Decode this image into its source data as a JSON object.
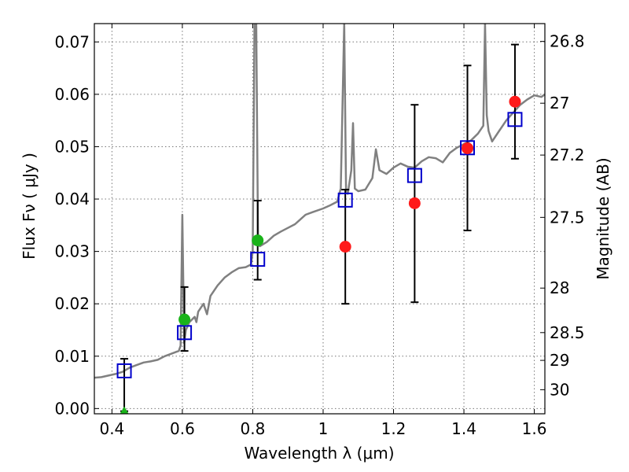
{
  "chart_data": {
    "type": "scatter",
    "xlabel": "Wavelength  λ (μm)",
    "ylabel": "Flux  Fν  ( μJy )",
    "ylabel_right": "Magnitude (AB)",
    "xlim": [
      0.35,
      1.63
    ],
    "ylim": [
      -0.001,
      0.0735
    ],
    "grid": true,
    "x_ticks": [
      0.4,
      0.6,
      0.8,
      1.0,
      1.2,
      1.4,
      1.6
    ],
    "x_tick_labels": [
      "0.4",
      "0.6",
      "0.8",
      "1",
      "1.2",
      "1.4",
      "1.6"
    ],
    "y_ticks": [
      0.0,
      0.01,
      0.02,
      0.03,
      0.04,
      0.05,
      0.06,
      0.07
    ],
    "y_tick_labels": [
      "0.00",
      "0.01",
      "0.02",
      "0.03",
      "0.04",
      "0.05",
      "0.06",
      "0.07"
    ],
    "right_ticks": [
      {
        "flux": 0.0701,
        "label": "26.8"
      },
      {
        "flux": 0.0583,
        "label": "27"
      },
      {
        "flux": 0.0484,
        "label": "27.2"
      },
      {
        "flux": 0.0365,
        "label": "27.5"
      },
      {
        "flux": 0.023,
        "label": "28"
      },
      {
        "flux": 0.0145,
        "label": "28.5"
      },
      {
        "flux": 0.0092,
        "label": "29"
      },
      {
        "flux": 0.0036,
        "label": "30"
      }
    ],
    "colors": {
      "spectrum": "#808080",
      "model_squares": "#0000cc",
      "detections": "#ff1a1a",
      "detections_alt": "#1ab31a",
      "errorbars": "#000000",
      "grid": "#777777"
    },
    "spectrum": [
      [
        0.35,
        0.0059
      ],
      [
        0.37,
        0.006
      ],
      [
        0.39,
        0.0063
      ],
      [
        0.41,
        0.0066
      ],
      [
        0.43,
        0.007
      ],
      [
        0.45,
        0.0078
      ],
      [
        0.47,
        0.0083
      ],
      [
        0.49,
        0.0088
      ],
      [
        0.51,
        0.009
      ],
      [
        0.53,
        0.0093
      ],
      [
        0.55,
        0.01
      ],
      [
        0.57,
        0.0105
      ],
      [
        0.59,
        0.011
      ],
      [
        0.595,
        0.012
      ],
      [
        0.6,
        0.037
      ],
      [
        0.605,
        0.0125
      ],
      [
        0.61,
        0.015
      ],
      [
        0.62,
        0.0165
      ],
      [
        0.635,
        0.0175
      ],
      [
        0.64,
        0.0165
      ],
      [
        0.645,
        0.0185
      ],
      [
        0.66,
        0.02
      ],
      [
        0.67,
        0.018
      ],
      [
        0.68,
        0.0215
      ],
      [
        0.7,
        0.0235
      ],
      [
        0.72,
        0.025
      ],
      [
        0.74,
        0.026
      ],
      [
        0.76,
        0.0268
      ],
      [
        0.78,
        0.027
      ],
      [
        0.795,
        0.0275
      ],
      [
        0.8,
        0.03
      ],
      [
        0.805,
        0.0735
      ],
      [
        0.81,
        0.0735
      ],
      [
        0.815,
        0.032
      ],
      [
        0.82,
        0.031
      ],
      [
        0.84,
        0.0318
      ],
      [
        0.86,
        0.033
      ],
      [
        0.88,
        0.0338
      ],
      [
        0.9,
        0.0345
      ],
      [
        0.92,
        0.0352
      ],
      [
        0.95,
        0.037
      ],
      [
        0.97,
        0.0375
      ],
      [
        1.0,
        0.0382
      ],
      [
        1.02,
        0.0388
      ],
      [
        1.04,
        0.0395
      ],
      [
        1.05,
        0.042
      ],
      [
        1.06,
        0.0735
      ],
      [
        1.065,
        0.042
      ],
      [
        1.07,
        0.041
      ],
      [
        1.08,
        0.0455
      ],
      [
        1.085,
        0.0545
      ],
      [
        1.09,
        0.042
      ],
      [
        1.1,
        0.0415
      ],
      [
        1.12,
        0.0418
      ],
      [
        1.14,
        0.044
      ],
      [
        1.15,
        0.0495
      ],
      [
        1.16,
        0.0455
      ],
      [
        1.18,
        0.0448
      ],
      [
        1.2,
        0.046
      ],
      [
        1.22,
        0.0468
      ],
      [
        1.24,
        0.0462
      ],
      [
        1.26,
        0.046
      ],
      [
        1.28,
        0.0472
      ],
      [
        1.3,
        0.048
      ],
      [
        1.32,
        0.0478
      ],
      [
        1.34,
        0.047
      ],
      [
        1.36,
        0.0488
      ],
      [
        1.38,
        0.0498
      ],
      [
        1.4,
        0.0505
      ],
      [
        1.42,
        0.0512
      ],
      [
        1.44,
        0.0525
      ],
      [
        1.455,
        0.054
      ],
      [
        1.46,
        0.0735
      ],
      [
        1.465,
        0.056
      ],
      [
        1.47,
        0.053
      ],
      [
        1.48,
        0.051
      ],
      [
        1.5,
        0.053
      ],
      [
        1.52,
        0.055
      ],
      [
        1.54,
        0.0565
      ],
      [
        1.56,
        0.058
      ],
      [
        1.58,
        0.059
      ],
      [
        1.6,
        0.0598
      ],
      [
        1.62,
        0.0595
      ],
      [
        1.63,
        0.06
      ]
    ],
    "model_squares": [
      {
        "x": 0.435,
        "y": 0.0072
      },
      {
        "x": 0.606,
        "y": 0.0145
      },
      {
        "x": 0.814,
        "y": 0.0285
      },
      {
        "x": 1.063,
        "y": 0.0398
      },
      {
        "x": 1.26,
        "y": 0.0445
      },
      {
        "x": 1.41,
        "y": 0.0498
      },
      {
        "x": 1.545,
        "y": 0.0552
      }
    ],
    "measurements": [
      {
        "x": 0.435,
        "y": -0.0005,
        "err_low": -0.0005,
        "err_high": 0.0095,
        "color": "green",
        "marker": "triangle"
      },
      {
        "x": 0.606,
        "y": 0.017,
        "err_low": 0.011,
        "err_high": 0.0232,
        "color": "green",
        "marker": "circle"
      },
      {
        "x": 0.814,
        "y": 0.0321,
        "err_low": 0.0246,
        "err_high": 0.0397,
        "color": "green",
        "marker": "circle"
      },
      {
        "x": 1.063,
        "y": 0.0309,
        "err_low": 0.02,
        "err_high": 0.0418,
        "color": "red",
        "marker": "circle"
      },
      {
        "x": 1.26,
        "y": 0.0392,
        "err_low": 0.0203,
        "err_high": 0.058,
        "color": "red",
        "marker": "circle"
      },
      {
        "x": 1.41,
        "y": 0.0497,
        "err_low": 0.034,
        "err_high": 0.0655,
        "color": "red",
        "marker": "circle"
      },
      {
        "x": 1.545,
        "y": 0.0586,
        "err_low": 0.0477,
        "err_high": 0.0695,
        "color": "red",
        "marker": "circle"
      }
    ]
  }
}
